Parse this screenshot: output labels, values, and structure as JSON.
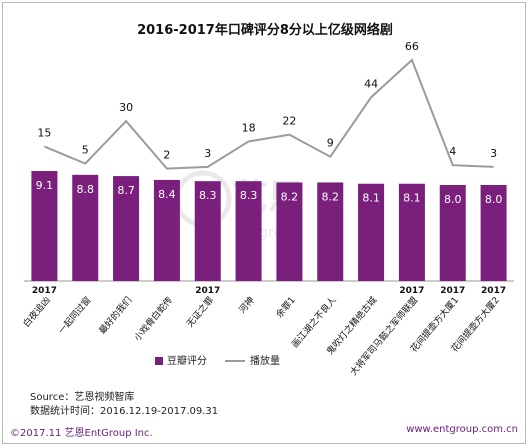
{
  "chart_data": {
    "type": "bar+line",
    "title": "2016-2017年口碑评分8分以上亿级网络剧",
    "categories": [
      "白夜追凶",
      "一起同过窗",
      "最好的我们",
      "小戏骨白蛇传",
      "无证之罪",
      "河神",
      "余罪1",
      "画江湖之不良人",
      "鬼吹灯之精绝古城",
      "大将军司马懿之军师联盟",
      "花间提壶方大厦1",
      "花间提壶方大厦2"
    ],
    "year_labels": [
      "2017",
      "",
      "",
      "",
      "2017",
      "",
      "",
      "",
      "",
      "2017",
      "2017",
      "2017"
    ],
    "series": [
      {
        "name": "豆瓣评分",
        "values": [
          9.1,
          8.8,
          8.7,
          8.4,
          8.3,
          8.3,
          8.2,
          8.2,
          8.1,
          8.1,
          8.0,
          8.0
        ],
        "color": "#7b1f7d"
      },
      {
        "name": "播放量",
        "values": [
          15,
          5,
          30,
          2,
          3,
          18,
          22,
          9,
          44,
          66,
          4,
          3
        ],
        "color": "#9b9b9b"
      }
    ],
    "legend_placement": "bottom"
  },
  "watermark": {
    "text": "艺恩",
    "subtext": "entgroup"
  },
  "source": {
    "line1": "Source：艺恩视频智库",
    "line2": "数据统计时间：2016.12.19-2017.09.31"
  },
  "footer": {
    "left": "©2017.11 艺恩EntGroup Inc.",
    "right": "www.entgroup.com.cn"
  }
}
